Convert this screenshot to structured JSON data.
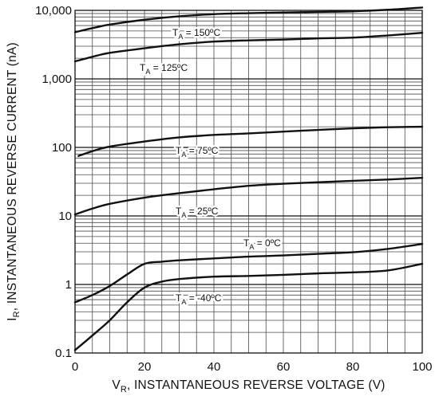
{
  "chart_data": {
    "type": "line",
    "title": "",
    "xlabel": {
      "main": "V",
      "subscript": "R",
      "rest": ", INSTANTANEOUS REVERSE VOLTAGE (V)"
    },
    "ylabel": {
      "main": "I",
      "subscript": "R",
      "rest": ", INSTANTANEOUS REVERSE CURRENT (nA)"
    },
    "xlim": [
      0,
      100
    ],
    "ylim": [
      0.1,
      10000
    ],
    "yscale": "log",
    "grid": true,
    "x_ticks": [
      {
        "value": 0,
        "label": "0"
      },
      {
        "value": 20,
        "label": "20"
      },
      {
        "value": 40,
        "label": "40"
      },
      {
        "value": 60,
        "label": "60"
      },
      {
        "value": 80,
        "label": "80"
      },
      {
        "value": 100,
        "label": "100"
      }
    ],
    "y_ticks": [
      {
        "value": 0.1,
        "label": "0.1"
      },
      {
        "value": 1,
        "label": "1"
      },
      {
        "value": 10,
        "label": "10"
      },
      {
        "value": 100,
        "label": "100"
      },
      {
        "value": 1000,
        "label": "1,000"
      },
      {
        "value": 10000,
        "label": "10,000"
      }
    ],
    "series": [
      {
        "name": "TA = 150°C",
        "label": {
          "prefix": "T",
          "subscript": "A",
          "suffix": " = 150ºC"
        },
        "x": [
          0,
          5,
          10,
          20,
          30,
          40,
          50,
          60,
          70,
          80,
          90,
          100
        ],
        "y": [
          4800,
          5500,
          6200,
          7300,
          8200,
          8800,
          9100,
          9300,
          9500,
          9700,
          10200,
          11000
        ]
      },
      {
        "name": "TA = 125°C",
        "label": {
          "prefix": "T",
          "subscript": "A",
          "suffix": " = 125ºC"
        },
        "x": [
          0,
          5,
          10,
          20,
          30,
          40,
          50,
          60,
          70,
          80,
          90,
          100
        ],
        "y": [
          1800,
          2100,
          2400,
          2800,
          3200,
          3500,
          3650,
          3750,
          3900,
          4000,
          4300,
          4700
        ]
      },
      {
        "name": "TA = 75°C",
        "label": {
          "prefix": "T",
          "subscript": "A",
          "suffix": " = 75ºC"
        },
        "x": [
          1,
          5,
          10,
          20,
          30,
          40,
          50,
          60,
          70,
          80,
          90,
          100
        ],
        "y": [
          75,
          88,
          103,
          122,
          140,
          152,
          160,
          170,
          180,
          190,
          197,
          200
        ]
      },
      {
        "name": "TA = 25°C",
        "label": {
          "prefix": "T",
          "subscript": "A",
          "suffix": " = 25ºC"
        },
        "x": [
          0,
          5,
          10,
          20,
          30,
          40,
          50,
          60,
          70,
          80,
          90,
          100
        ],
        "y": [
          10.5,
          12.8,
          15,
          18.5,
          21.5,
          24.5,
          27.5,
          29.5,
          31,
          32.5,
          34,
          36
        ]
      },
      {
        "name": "TA = 0°C",
        "label": {
          "prefix": "T",
          "subscript": "A",
          "suffix": " = 0ºC"
        },
        "x": [
          0,
          5,
          10,
          15,
          20,
          25,
          30,
          40,
          50,
          60,
          70,
          80,
          90,
          100
        ],
        "y": [
          0.55,
          0.7,
          0.95,
          1.4,
          2.0,
          2.15,
          2.25,
          2.4,
          2.55,
          2.65,
          2.8,
          2.95,
          3.3,
          3.9
        ]
      },
      {
        "name": "TA = -40°C",
        "label": {
          "prefix": "T",
          "subscript": "A",
          "suffix": " = -40ºC"
        },
        "x": [
          0,
          5,
          10,
          15,
          20,
          25,
          30,
          40,
          50,
          60,
          70,
          80,
          90,
          100
        ],
        "y": [
          0.11,
          0.18,
          0.3,
          0.55,
          0.9,
          1.1,
          1.2,
          1.3,
          1.33,
          1.38,
          1.45,
          1.5,
          1.6,
          2.0
        ]
      }
    ],
    "colors": {
      "background": "#ffffff",
      "grid": "#4a4a4a",
      "curve": "#111111",
      "text": "#111111"
    }
  }
}
